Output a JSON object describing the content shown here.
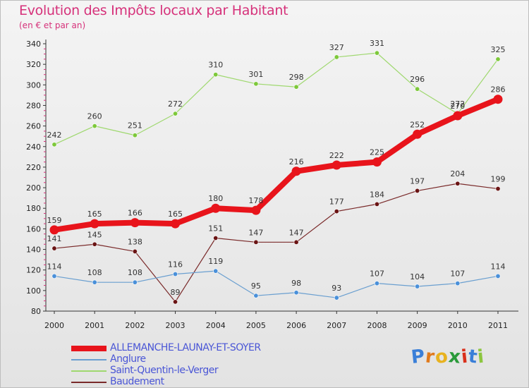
{
  "header": {
    "title": "Evolution des Impôts locaux par Habitant",
    "subtitle": "(en € et par an)"
  },
  "brand": {
    "letters": [
      "P",
      "r",
      "o",
      "x",
      "i",
      "t",
      "i"
    ],
    "colors": [
      "#3a7fd8",
      "#e07a1c",
      "#e8b21f",
      "#2a9a3a",
      "#d9301c",
      "#3a7fd8",
      "#8cc63f"
    ]
  },
  "chart_data": {
    "type": "line",
    "title": "Evolution des Impôts locaux par Habitant",
    "subtitle": "(en € et par an)",
    "x": [
      "2000",
      "2001",
      "2002",
      "2003",
      "2004",
      "2005",
      "2006",
      "2007",
      "2008",
      "2009",
      "2010",
      "2011"
    ],
    "ylim": [
      80,
      340
    ],
    "yticks": [
      80,
      100,
      120,
      140,
      160,
      180,
      200,
      220,
      240,
      260,
      280,
      300,
      320,
      340
    ],
    "grid": false,
    "legend_position": "bottom",
    "series": [
      {
        "name": "ALLEMANCHE-LAUNAY-ET-SOYER",
        "color": "#e8141b",
        "bold": true,
        "values": [
          159,
          165,
          166,
          165,
          180,
          178,
          216,
          222,
          225,
          252,
          270,
          286
        ]
      },
      {
        "name": "Anglure",
        "color": "#6a9fd0",
        "point": "#4a90d9",
        "values": [
          114,
          108,
          108,
          116,
          119,
          95,
          98,
          93,
          107,
          104,
          107,
          114
        ]
      },
      {
        "name": "Saint-Quentin-le-Verger",
        "color": "#9fd86f",
        "point": "#7dc83a",
        "values": [
          242,
          260,
          251,
          272,
          310,
          301,
          298,
          327,
          331,
          296,
          272,
          325
        ]
      },
      {
        "name": "Baudement",
        "color": "#7a2a2a",
        "point": "#6a1414",
        "values": [
          141,
          145,
          138,
          89,
          151,
          147,
          147,
          177,
          184,
          197,
          204,
          199
        ]
      }
    ]
  }
}
